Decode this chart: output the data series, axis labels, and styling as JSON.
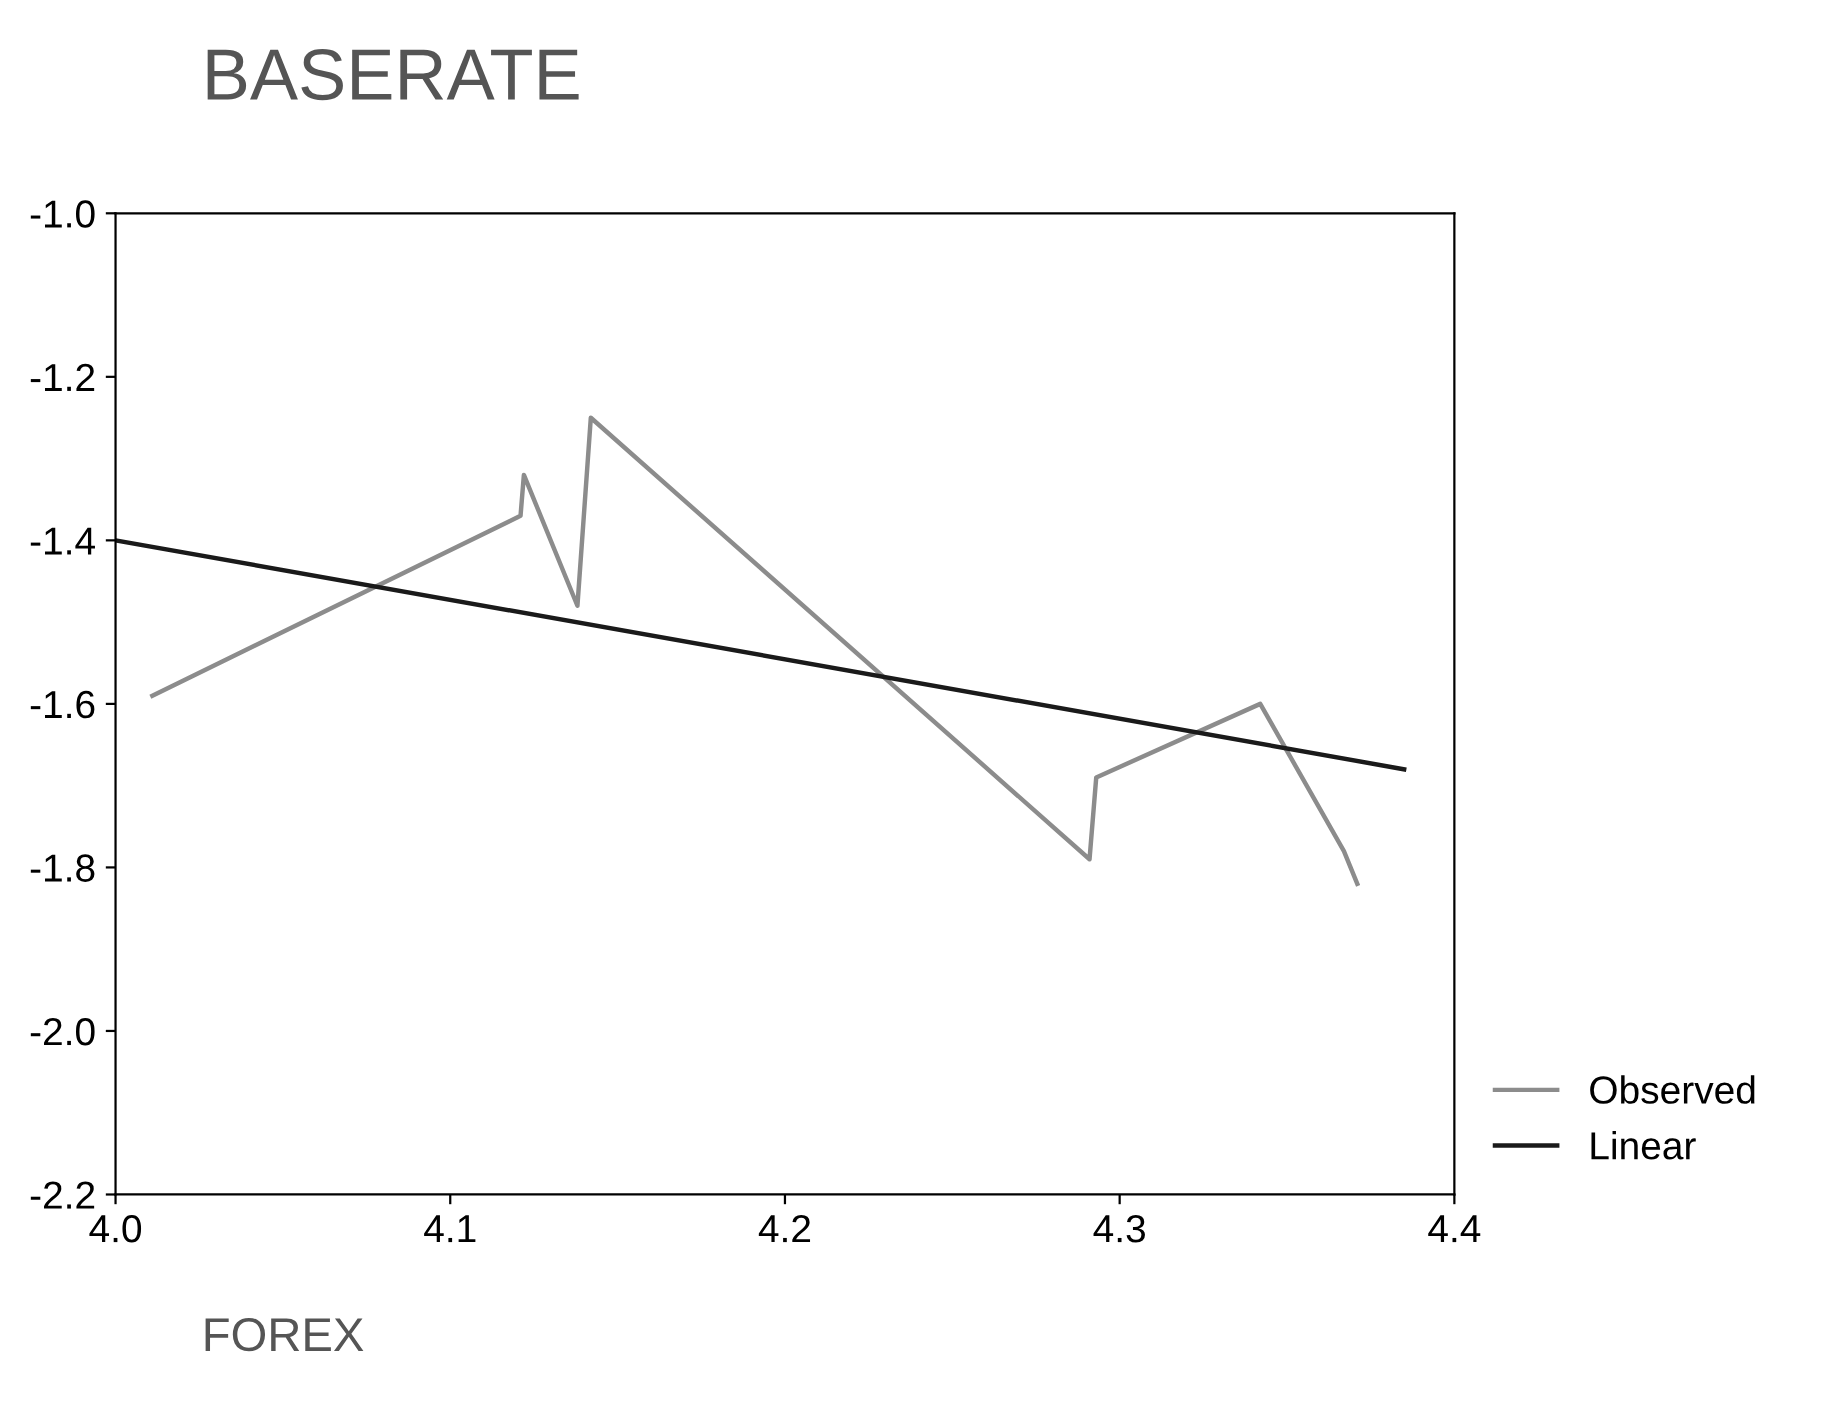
{
  "chart_data": {
    "type": "line",
    "title": "BASERATE",
    "xlabel": "FOREX",
    "series": [
      {
        "name": "Observed",
        "color": "#8c8c8c",
        "x": [
          4.011,
          4.121,
          4.122,
          4.138,
          4.142,
          4.291,
          4.293,
          4.342,
          4.367,
          4.371
        ],
        "values": [
          -1.59,
          -1.37,
          -1.32,
          -1.48,
          -1.25,
          -1.79,
          -1.69,
          -1.6,
          -1.78,
          -1.82
        ]
      },
      {
        "name": "Linear",
        "color": "#1a1a1a",
        "x": [
          4.0,
          4.385
        ],
        "values": [
          -1.4,
          -1.68
        ]
      }
    ],
    "xlim": [
      4.0,
      4.4
    ],
    "xticks": [
      {
        "value": 4.0,
        "label": "4.0"
      },
      4.1,
      4.2,
      4.3,
      4.4
    ],
    "ylim": [
      -2.2,
      -1.0
    ],
    "yticks": [
      {
        "value": -2.2,
        "label": "-2.2"
      },
      {
        "value": -2.0,
        "label": "-2.0"
      },
      {
        "value": -1.8,
        "label": "-1.8"
      },
      {
        "value": -1.6,
        "label": "-1.6"
      },
      {
        "value": -1.4,
        "label": "-1.4"
      },
      {
        "value": -1.2,
        "label": "-1.2"
      },
      {
        "value": -1.0,
        "label": "-1.0"
      }
    ],
    "grid": false,
    "legend": "bottom right",
    "marker": "none",
    "line_style": "solid"
  }
}
